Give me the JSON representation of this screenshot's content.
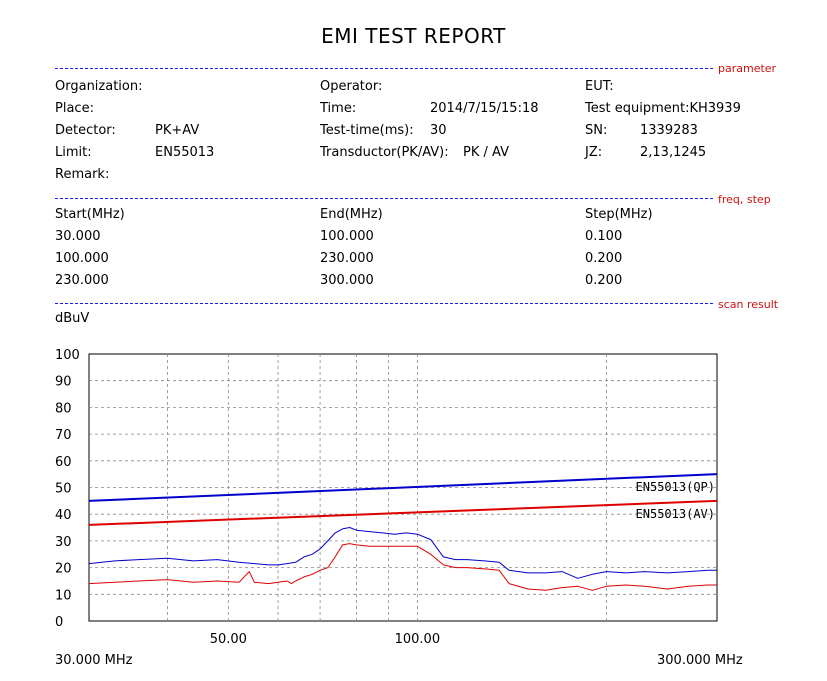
{
  "title": "EMI TEST REPORT",
  "sections": {
    "parameter": "parameter",
    "freq_step": "freq, step",
    "scan_result": "scan result"
  },
  "parameters": {
    "organization_label": "Organization:",
    "organization_value": "",
    "place_label": "Place:",
    "detector_label": "Detector:",
    "detector_value": "PK+AV",
    "limit_label": "Limit:",
    "limit_value": "EN55013",
    "remark_label": "Remark:",
    "operator_label": "Operator:",
    "time_label": "Time:",
    "time_value": "2014/7/15/15:18",
    "test_time_label": "Test-time(ms):",
    "test_time_value": "30",
    "transductor_label": "Transductor(PK/AV):",
    "transductor_value": "PK  /  AV",
    "eut_label": "EUT:",
    "test_equipment_label": "Test equipment:",
    "test_equipment_value": "KH3939",
    "sn_label": "SN:",
    "sn_value": "1339283",
    "jz_label": "JZ:",
    "jz_value": "2,13,1245"
  },
  "freq_table": {
    "headers": [
      "Start(MHz)",
      "End(MHz)",
      "Step(MHz)"
    ],
    "rows": [
      [
        "30.000",
        "100.000",
        "0.100"
      ],
      [
        "100.000",
        "230.000",
        "0.200"
      ],
      [
        "230.000",
        "300.000",
        "0.200"
      ]
    ]
  },
  "chart_data": {
    "type": "line",
    "ylabel": "dBuV",
    "ylim": [
      0,
      100
    ],
    "y_ticks": [
      "0",
      "10",
      "20",
      "30",
      "40",
      "50",
      "60",
      "70",
      "80",
      "90",
      "100"
    ],
    "xlim": [
      30,
      300
    ],
    "x_scale": "log",
    "x_tick_labels": [
      {
        "x": 50,
        "label": "50.00"
      },
      {
        "x": 100,
        "label": "100.00"
      }
    ],
    "x_range_labels": {
      "start": "30.000 MHz",
      "end": "300.000 MHz"
    },
    "grid": true,
    "series": [
      {
        "name": "EN55013(QP)",
        "kind": "limit",
        "color": "#0000cc",
        "x": [
          30,
          300
        ],
        "y": [
          45,
          55
        ]
      },
      {
        "name": "EN55013(AV)",
        "kind": "limit",
        "color": "#dd0000",
        "x": [
          30,
          300
        ],
        "y": [
          36,
          45
        ]
      },
      {
        "name": "",
        "kind": "trace",
        "color": "#0000cc",
        "x": [
          30,
          33,
          36,
          40,
          44,
          48,
          52,
          55,
          58,
          60,
          62,
          64,
          66,
          68,
          70,
          72,
          74,
          76,
          78,
          80,
          84,
          88,
          92,
          96,
          100,
          105,
          110,
          115,
          120,
          128,
          135,
          140,
          150,
          160,
          170,
          180,
          190,
          200,
          215,
          230,
          250,
          270,
          290,
          300
        ],
        "y": [
          21.5,
          22.5,
          23,
          23.5,
          22.5,
          23,
          22,
          21.5,
          21,
          21,
          21.5,
          22,
          24,
          25,
          27,
          30,
          33,
          34.5,
          35,
          34,
          33.5,
          33,
          32.5,
          33,
          32.5,
          30.5,
          24,
          23,
          23,
          22.5,
          22,
          19,
          18,
          18,
          18.5,
          16,
          17.5,
          18.5,
          18,
          18.5,
          18,
          18.5,
          19,
          19
        ]
      },
      {
        "name": "",
        "kind": "trace",
        "color": "#dd0000",
        "x": [
          30,
          33,
          36,
          40,
          44,
          48,
          52,
          54,
          55,
          58,
          60,
          62,
          63,
          64,
          66,
          68,
          70,
          72,
          74,
          76,
          78,
          80,
          84,
          88,
          92,
          96,
          100,
          105,
          110,
          115,
          120,
          128,
          135,
          140,
          150,
          160,
          170,
          180,
          190,
          200,
          215,
          230,
          250,
          270,
          290,
          300
        ],
        "y": [
          14,
          14.5,
          15,
          15.5,
          14.5,
          15,
          14.5,
          18.5,
          14.5,
          14,
          14.5,
          15,
          14,
          15,
          16.5,
          17.5,
          19,
          20,
          24,
          28.5,
          29,
          28.5,
          28,
          28,
          28,
          28,
          28,
          25,
          21,
          20,
          20,
          19.5,
          19,
          14,
          12,
          11.5,
          12.5,
          13,
          11.5,
          13,
          13.5,
          13,
          12,
          13,
          13.5,
          13.5
        ]
      }
    ],
    "annotations": [
      {
        "text": "EN55013(QP)",
        "x": 300,
        "y": 55
      },
      {
        "text": "EN55013(AV)",
        "x": 300,
        "y": 45
      }
    ]
  }
}
